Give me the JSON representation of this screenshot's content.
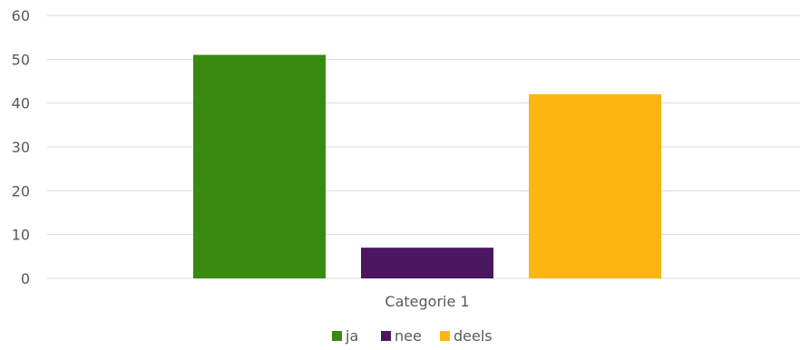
{
  "chart_data": {
    "type": "bar",
    "categories": [
      "Categorie 1"
    ],
    "series": [
      {
        "name": "ja",
        "values": [
          51
        ],
        "color": "#3a8a12"
      },
      {
        "name": "nee",
        "values": [
          7
        ],
        "color": "#4a1660"
      },
      {
        "name": "deels",
        "values": [
          42
        ],
        "color": "#fbb614"
      }
    ],
    "ylim": [
      0,
      60
    ],
    "yticks": [
      0,
      10,
      20,
      30,
      40,
      50,
      60
    ],
    "grid": true,
    "legend": "bottom"
  }
}
